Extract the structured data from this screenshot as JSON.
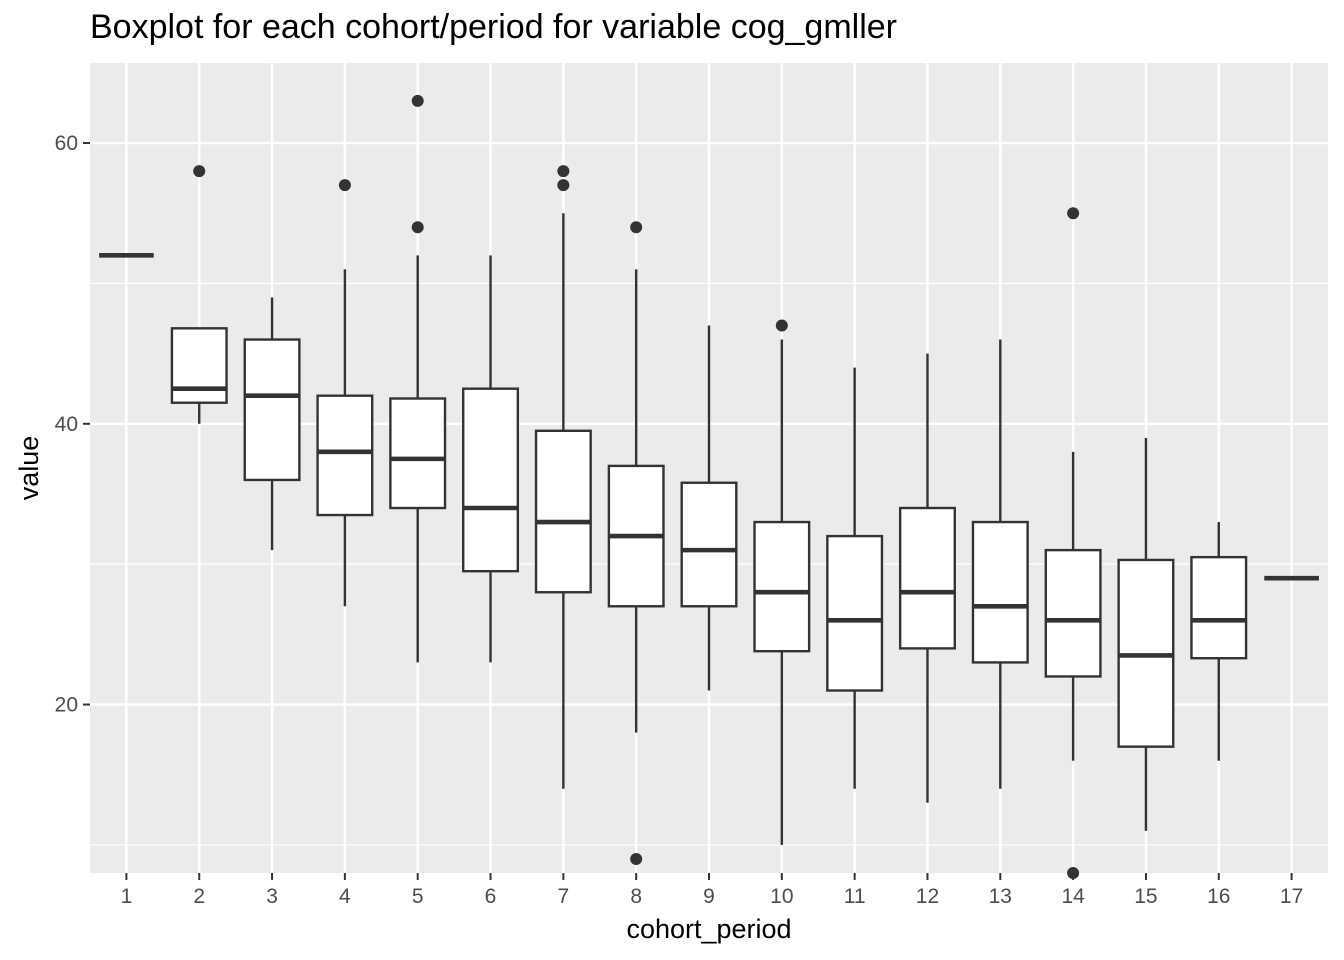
{
  "chart_data": {
    "type": "boxplot",
    "title": "Boxplot for each cohort/period for variable cog_gmller",
    "xlabel": "cohort_period",
    "ylabel": "value",
    "categories": [
      "1",
      "2",
      "3",
      "4",
      "5",
      "6",
      "7",
      "8",
      "9",
      "10",
      "11",
      "12",
      "13",
      "14",
      "15",
      "16",
      "17"
    ],
    "ylim": [
      8,
      65.7
    ],
    "yticks": [
      20,
      40,
      60
    ],
    "grid": true,
    "colors": {
      "panel": "#ebebeb",
      "grid": "#ffffff",
      "box_line": "#333333",
      "box_fill": "#ffffff"
    },
    "boxes": [
      {
        "x": "1",
        "lower_whisker": 52,
        "q1": 52,
        "median": 52,
        "q3": 52,
        "upper_whisker": 52,
        "outliers": []
      },
      {
        "x": "2",
        "lower_whisker": 40,
        "q1": 41.5,
        "median": 42.5,
        "q3": 46.8,
        "upper_whisker": 46.8,
        "outliers": [
          58
        ]
      },
      {
        "x": "3",
        "lower_whisker": 31,
        "q1": 36,
        "median": 42,
        "q3": 46,
        "upper_whisker": 49,
        "outliers": []
      },
      {
        "x": "4",
        "lower_whisker": 27,
        "q1": 33.5,
        "median": 38,
        "q3": 42,
        "upper_whisker": 51,
        "outliers": [
          57
        ]
      },
      {
        "x": "5",
        "lower_whisker": 23,
        "q1": 34,
        "median": 37.5,
        "q3": 41.8,
        "upper_whisker": 52,
        "outliers": [
          54,
          63
        ]
      },
      {
        "x": "6",
        "lower_whisker": 23,
        "q1": 29.5,
        "median": 34,
        "q3": 42.5,
        "upper_whisker": 52,
        "outliers": []
      },
      {
        "x": "7",
        "lower_whisker": 14,
        "q1": 28,
        "median": 33,
        "q3": 39.5,
        "upper_whisker": 55,
        "outliers": [
          57,
          58
        ]
      },
      {
        "x": "8",
        "lower_whisker": 18,
        "q1": 27,
        "median": 32,
        "q3": 37,
        "upper_whisker": 51,
        "outliers": [
          54,
          9
        ]
      },
      {
        "x": "9",
        "lower_whisker": 21,
        "q1": 27,
        "median": 31,
        "q3": 35.8,
        "upper_whisker": 47,
        "outliers": []
      },
      {
        "x": "10",
        "lower_whisker": 10,
        "q1": 23.8,
        "median": 28,
        "q3": 33,
        "upper_whisker": 46,
        "outliers": [
          47
        ]
      },
      {
        "x": "11",
        "lower_whisker": 14,
        "q1": 21,
        "median": 26,
        "q3": 32,
        "upper_whisker": 44,
        "outliers": []
      },
      {
        "x": "12",
        "lower_whisker": 13,
        "q1": 24,
        "median": 28,
        "q3": 34,
        "upper_whisker": 45,
        "outliers": []
      },
      {
        "x": "13",
        "lower_whisker": 14,
        "q1": 23,
        "median": 27,
        "q3": 33,
        "upper_whisker": 46,
        "outliers": []
      },
      {
        "x": "14",
        "lower_whisker": 16,
        "q1": 22,
        "median": 26,
        "q3": 31,
        "upper_whisker": 38,
        "outliers": [
          55,
          8
        ]
      },
      {
        "x": "15",
        "lower_whisker": 11,
        "q1": 17,
        "median": 23.5,
        "q3": 30.3,
        "upper_whisker": 39,
        "outliers": []
      },
      {
        "x": "16",
        "lower_whisker": 16,
        "q1": 23.3,
        "median": 26,
        "q3": 30.5,
        "upper_whisker": 33,
        "outliers": []
      },
      {
        "x": "17",
        "lower_whisker": 29,
        "q1": 29,
        "median": 29,
        "q3": 29,
        "upper_whisker": 29,
        "outliers": []
      }
    ]
  }
}
